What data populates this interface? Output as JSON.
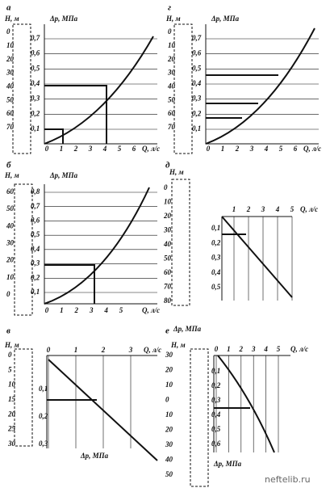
{
  "panels": [
    {
      "letter": "а",
      "h_label": "Н, м",
      "p_label": "Δр, МПа",
      "q_label": "Q, л/с",
      "h_ticks": [
        "0",
        "10",
        "20",
        "30",
        "40",
        "50",
        "60",
        "70"
      ],
      "p_ticks": [
        "0,7",
        "0,6",
        "0,5",
        "0,4",
        "0,3",
        "0,2",
        "0,1"
      ],
      "q_ticks": [
        "0",
        "1",
        "2",
        "3",
        "4",
        "5",
        "6"
      ]
    },
    {
      "letter": "г",
      "h_label": "Н, м",
      "p_label": "Δр, МПа",
      "q_label": "Q, л/с",
      "h_ticks": [
        "0",
        "10",
        "20",
        "30",
        "40",
        "50",
        "60",
        "70"
      ],
      "p_ticks": [
        "0,7",
        "0,6",
        "0,5",
        "0,4",
        "0,3",
        "0,2",
        "0,1"
      ],
      "q_ticks": [
        "0",
        "1",
        "2",
        "3",
        "4",
        "5",
        "6"
      ]
    },
    {
      "letter": "б",
      "h_label": "Н, м",
      "p_label": "Δр, МПа",
      "q_label": "Q, л/с",
      "h_ticks": [
        "60",
        "50",
        "40",
        "30",
        "20",
        "10",
        "0"
      ],
      "p_ticks": [
        "0,8",
        "0,7",
        "0,6",
        "0,5",
        "0,4",
        "0,3",
        "0,2",
        "0,1"
      ],
      "q_ticks": [
        "0",
        "1",
        "2",
        "3",
        "4",
        "5"
      ]
    },
    {
      "letter": "д",
      "h_label": "Н, м",
      "p_label": "Δр, МПа",
      "q_label": "Q, л/с",
      "h_ticks": [
        "0",
        "10",
        "20",
        "30",
        "40",
        "50",
        "60",
        "70",
        "80"
      ],
      "p_ticks": [
        "0,1",
        "0,2",
        "0,3",
        "0,4",
        "0,5"
      ],
      "q_ticks": [
        "1",
        "2",
        "3",
        "4",
        "5"
      ]
    },
    {
      "letter": "в",
      "h_label": "Н, м",
      "p_label": "Δр, МПа",
      "q_label": "Q, л/с",
      "h_ticks": [
        "0",
        "5",
        "10",
        "15",
        "20",
        "25",
        "30"
      ],
      "p_ticks": [
        "0,1",
        "0,2",
        "0,3"
      ],
      "q_ticks": [
        "0",
        "1",
        "2",
        "3"
      ]
    },
    {
      "letter": "е",
      "h_label": "Н, м",
      "p_label": "Δр, МПа",
      "q_label": "Q, л/с",
      "h_ticks": [
        "30",
        "20",
        "10",
        "0",
        "10",
        "20",
        "30",
        "40",
        "50"
      ],
      "p_ticks": [
        "0,1",
        "0,2",
        "0,3",
        "0,4",
        "0,5",
        "0,6"
      ],
      "q_ticks": [
        "0",
        "1",
        "2",
        "3",
        "4",
        "5"
      ]
    }
  ],
  "footer": "neftelib.ru"
}
